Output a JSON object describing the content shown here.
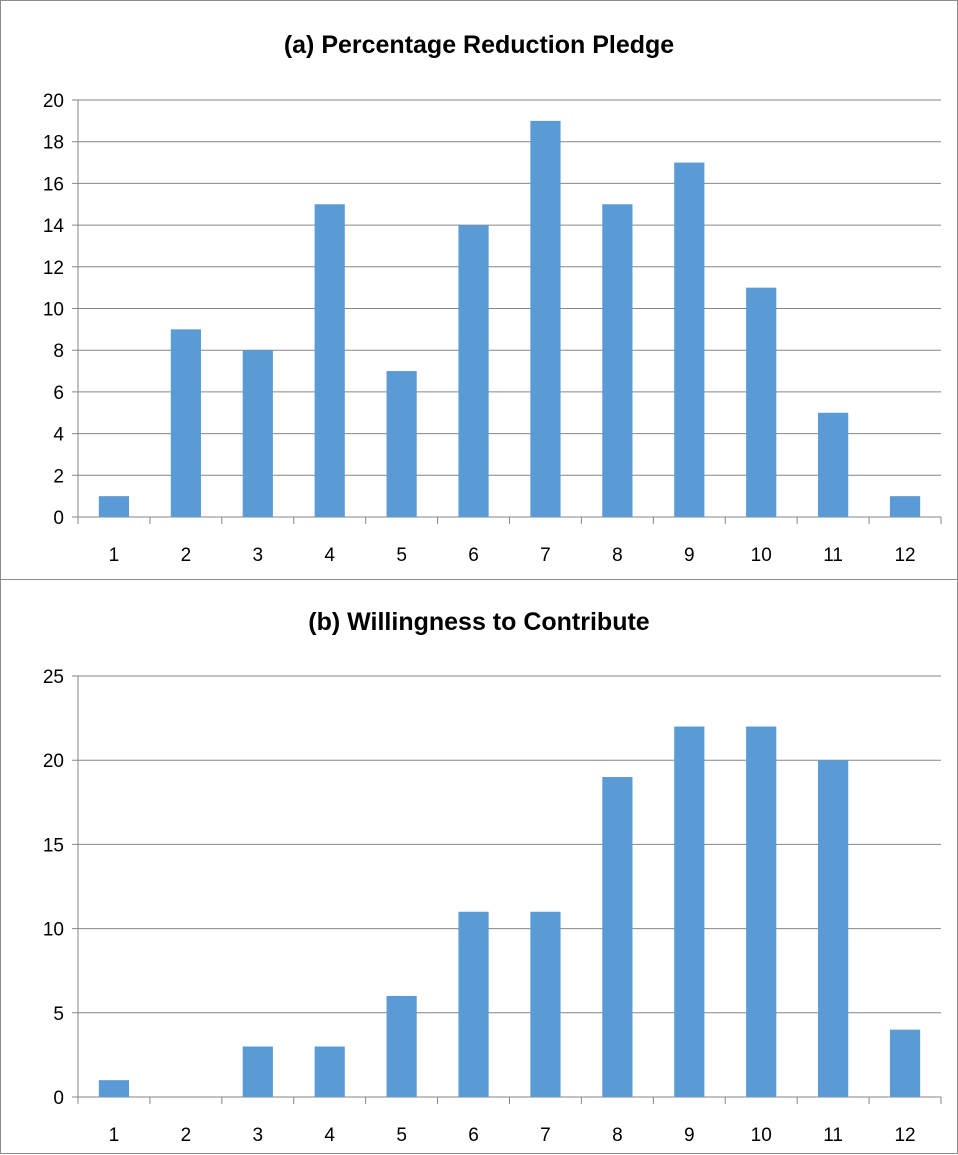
{
  "chart_data": [
    {
      "type": "bar",
      "title": "(a) Percentage Reduction Pledge",
      "xlabel": "",
      "ylabel": "",
      "categories": [
        "1",
        "2",
        "3",
        "4",
        "5",
        "6",
        "7",
        "8",
        "9",
        "10",
        "11",
        "12"
      ],
      "values": [
        1,
        9,
        8,
        15,
        7,
        14,
        19,
        15,
        17,
        11,
        5,
        1
      ],
      "ylim": [
        0,
        20
      ],
      "yticks": [
        "0",
        "2",
        "4",
        "6",
        "8",
        "10",
        "12",
        "14",
        "16",
        "18",
        "20"
      ],
      "grid": true,
      "legend": "none",
      "bar_color": "#5b9bd5"
    },
    {
      "type": "bar",
      "title": "(b) Willingness to Contribute",
      "xlabel": "",
      "ylabel": "",
      "categories": [
        "1",
        "2",
        "3",
        "4",
        "5",
        "6",
        "7",
        "8",
        "9",
        "10",
        "11",
        "12"
      ],
      "values": [
        1,
        0,
        3,
        3,
        6,
        11,
        11,
        19,
        22,
        22,
        20,
        4
      ],
      "ylim": [
        0,
        25
      ],
      "yticks": [
        "0",
        "5",
        "10",
        "15",
        "20",
        "25"
      ],
      "grid": true,
      "legend": "none",
      "bar_color": "#5b9bd5"
    }
  ],
  "colors": {
    "bar": "#5b9bd5",
    "grid": "#868686",
    "axis": "#868686"
  }
}
